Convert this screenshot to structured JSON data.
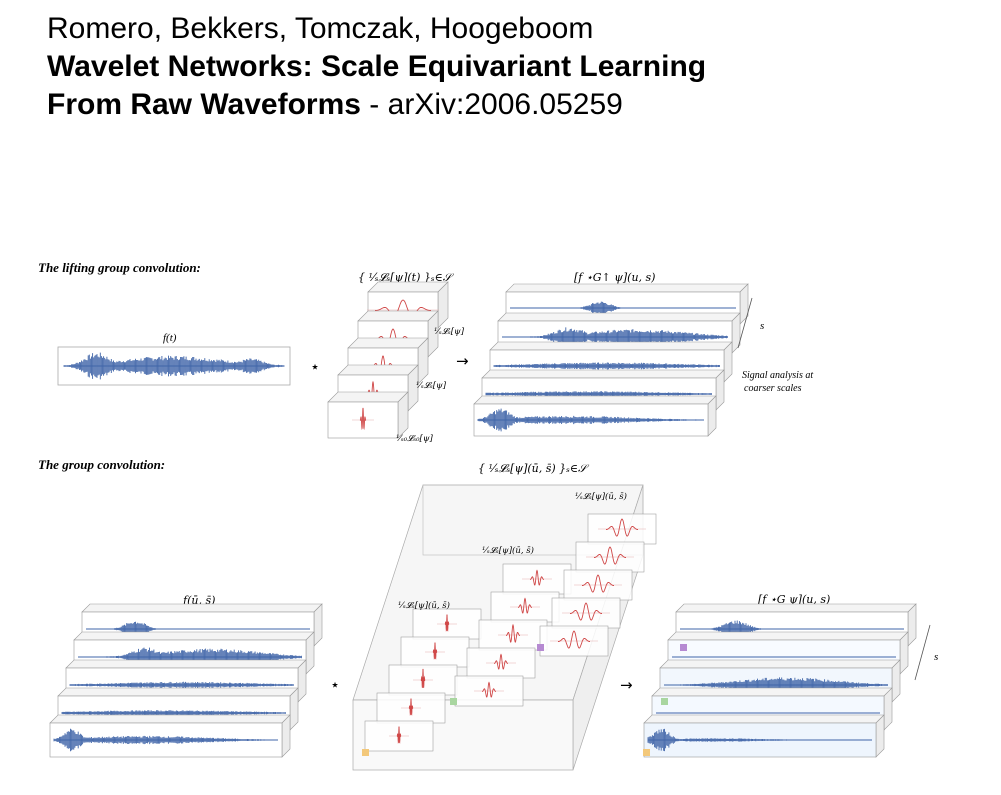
{
  "header": {
    "authors": "Romero, Bekkers, Tomczak, Hoogeboom",
    "title_line1": "Wavelet Networks: Scale Equivariant Learning",
    "title_line2": "From Raw Waveforms",
    "arxiv_separator": " - ",
    "arxiv": "arXiv:2006.05259"
  },
  "figure": {
    "lifting": {
      "heading": "The lifting group convolution:",
      "input_label": "f(t)",
      "kernel_set_label": "{ ¹⁄ₛ𝓛ₛ[ψ](t) }ₛ∈𝒮",
      "kernel_labels": [
        "¹⁄ₛ𝓛ₛ[ψ]",
        "¹⁄ₛ𝓛ₛ[ψ]",
        "¹⁄ₛ₀𝓛ₛ₀[ψ]"
      ],
      "star": "⋆",
      "arrow": "→",
      "output_label": "[f ⋆G↑ ψ](u, s)",
      "axis_label": "s",
      "note_line1": "Signal analysis at",
      "note_line2": "coarser scales"
    },
    "group": {
      "heading": "The group convolution:",
      "input_label": "f(ū, s̄)",
      "kernel_set_label": "{ ¹⁄ₛ𝓛ₛ[ψ](ū, s̄) }ₛ∈𝒮",
      "kernel_labels": [
        "¹⁄ₛ𝓛ₛ[ψ](ū, s̄)",
        "¹⁄ₛ𝓛ₛ[ψ](ū, s̄)",
        "¹⁄ₛ𝓛ₛ[ψ](ū, s̄)"
      ],
      "star": "⋆",
      "arrow": "→",
      "output_label": "[f ⋆G ψ](u, s)",
      "axis_label": "s"
    },
    "colors": {
      "signal": "#3f64a8",
      "kernel": "#d04848",
      "frame": "#9a9a9a",
      "marker_orange": "#f3c87a",
      "marker_green": "#a9d6a0",
      "marker_purple": "#b68ad2"
    }
  }
}
